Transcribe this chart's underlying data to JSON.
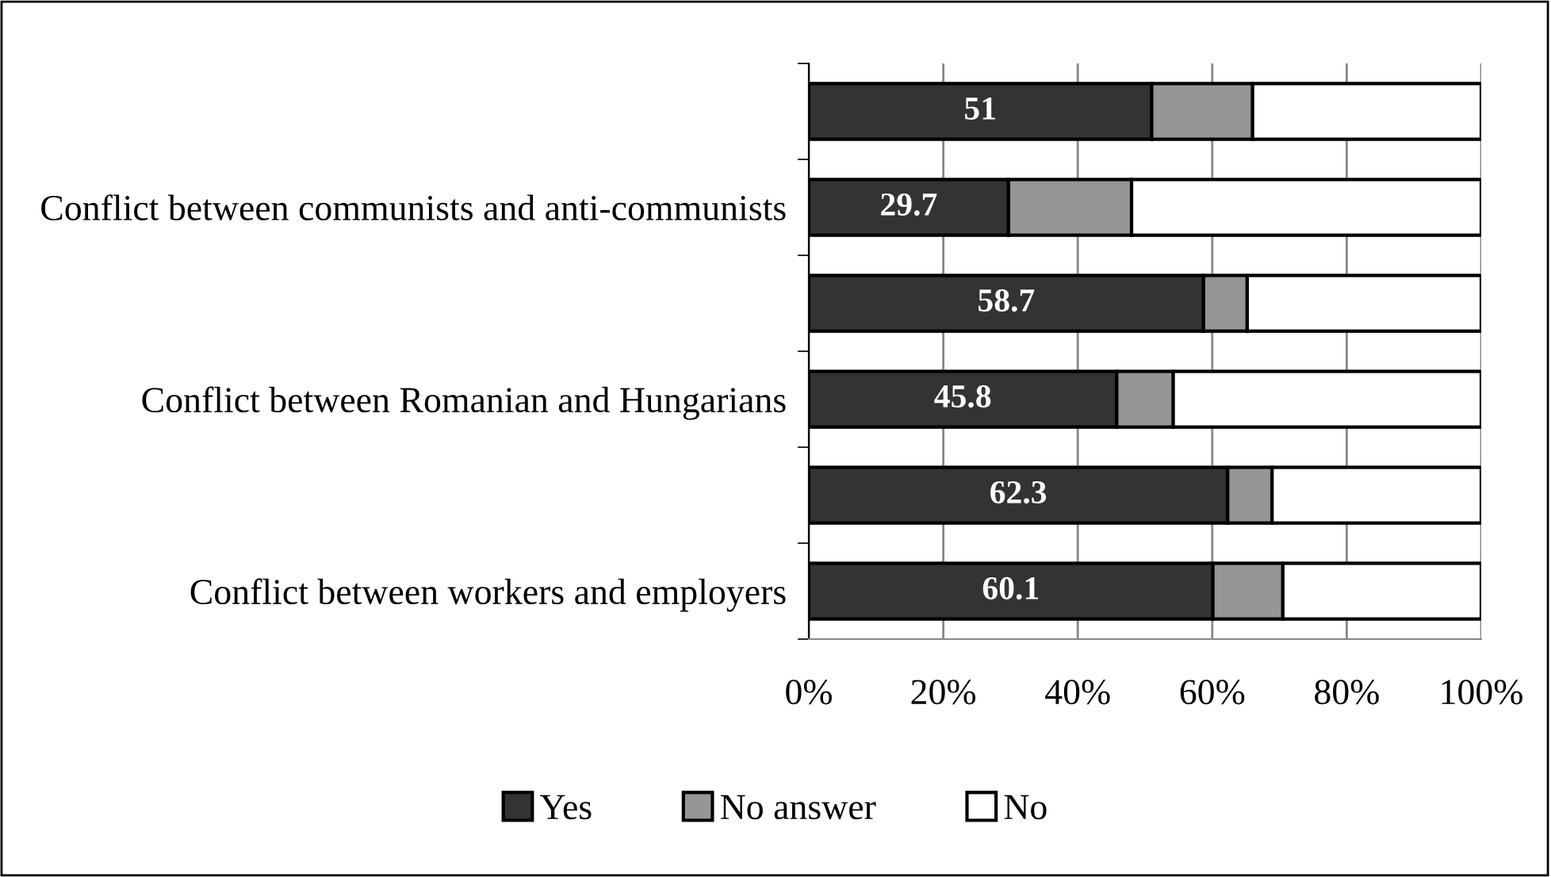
{
  "chart_data": {
    "type": "bar",
    "orientation": "horizontal",
    "stacked": true,
    "categories": [
      null,
      "Conflict between communists and anti-communists",
      null,
      "Conflict between Romanian and Hungarians",
      null,
      "Conflict between workers and employers"
    ],
    "series": [
      {
        "name": "Yes",
        "color": "#333333",
        "values": [
          51,
          29.7,
          58.7,
          45.8,
          62.3,
          60.1
        ],
        "value_labels": [
          "51",
          "29.7",
          "58.7",
          "45.8",
          "62.3",
          "60.1"
        ]
      },
      {
        "name": "No answer",
        "color": "#969696",
        "values": [
          15,
          18.3,
          6.5,
          8.4,
          6.6,
          10.4
        ]
      },
      {
        "name": "No",
        "color": "#ffffff",
        "values": [
          34,
          52,
          34.8,
          45.8,
          31.1,
          29.5
        ]
      }
    ],
    "xlim": [
      0,
      100
    ],
    "xticks": [
      {
        "value": 0,
        "label": "0%"
      },
      {
        "value": 20,
        "label": "20%"
      },
      {
        "value": 40,
        "label": "40%"
      },
      {
        "value": 60,
        "label": "60%"
      },
      {
        "value": 80,
        "label": "80%"
      },
      {
        "value": 100,
        "label": "100%"
      }
    ],
    "grid": "x",
    "legend": "bottom"
  }
}
